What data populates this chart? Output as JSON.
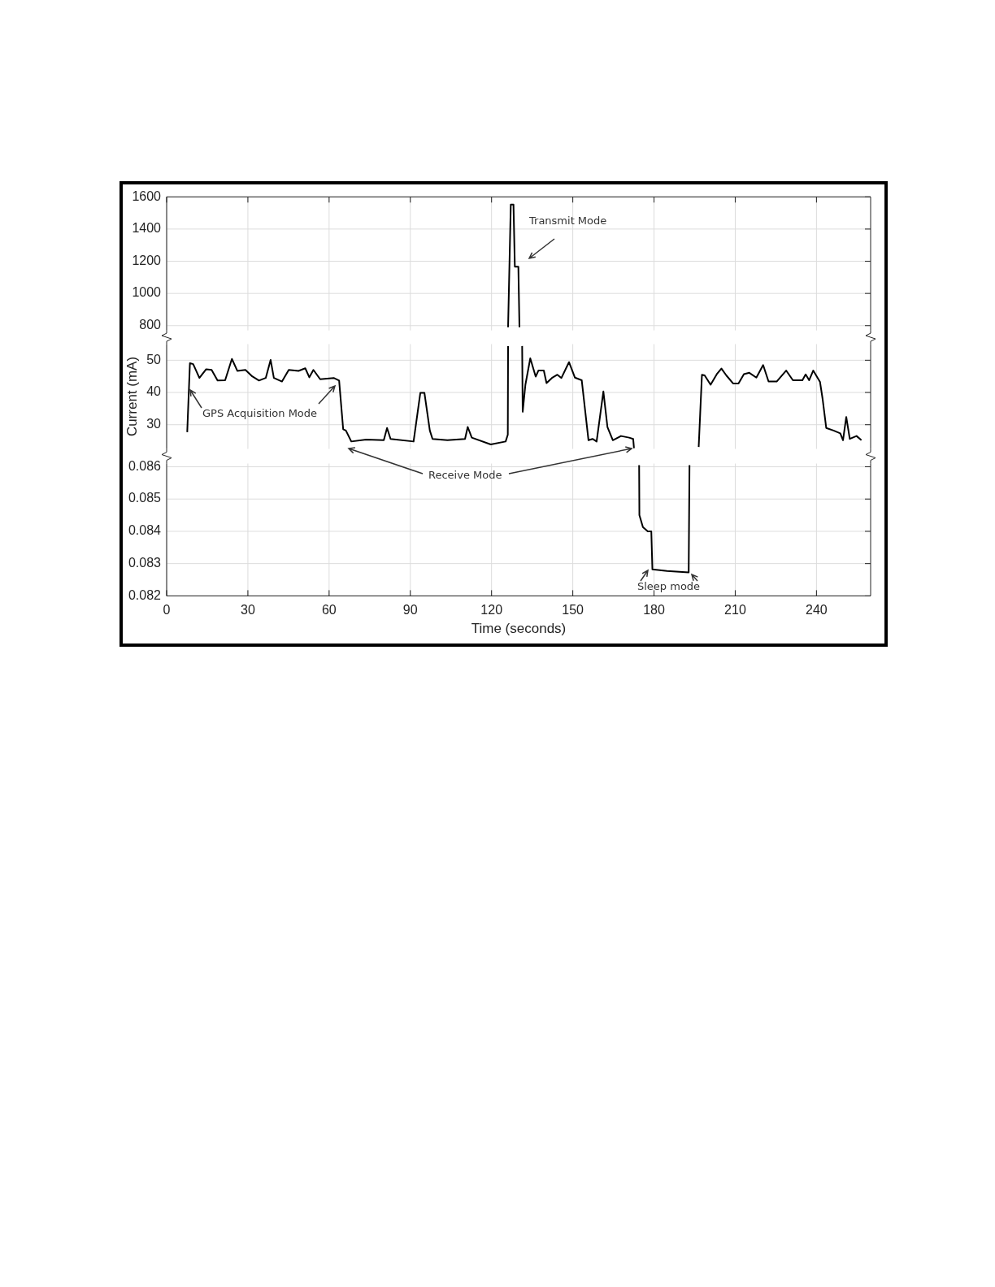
{
  "chart_data": [
    {
      "type": "line",
      "x": [
        126.1,
        127.1,
        128.1,
        128.6,
        129.9,
        130.3
      ],
      "series": [
        {
          "color": "#000000",
          "values": [
            790,
            1552,
            1552,
            1166,
            1166,
            790
          ]
        }
      ],
      "xlim": [
        0,
        260
      ],
      "xticks": [
        0,
        30,
        60,
        90,
        120,
        150,
        180,
        210,
        240
      ],
      "ylim": [
        770,
        1600
      ],
      "yticks": [
        800,
        1000,
        1200,
        1400,
        1600
      ],
      "grid": true,
      "tick_labels": "y",
      "annotations": [
        "Transmit Mode"
      ]
    },
    {
      "type": "line",
      "ylabel": "Current (mA)",
      "x": [
        7.6,
        8.6,
        9.8,
        12.1,
        14.6,
        16.6,
        18.8,
        21.6,
        24.1,
        26.1,
        29.1,
        31.6,
        34.1,
        36.6,
        38.4,
        39.6,
        42.6,
        45.1,
        48.7,
        51.2,
        52.7,
        54.2,
        56.7,
        61.7,
        63.7,
        65.2,
        66.2,
        68.2,
        73.7,
        80.2,
        81.4,
        82.7,
        91.2,
        93.7,
        95.2,
        97.2,
        98.2,
        103.7,
        110.2,
        111.2,
        112.7,
        119.7,
        125.2,
        126.0,
        126.1,
        126.2,
        131.3,
        131.5,
        132.5,
        134.3,
        136.3,
        137.3,
        139.3,
        140.3,
        142.3,
        144.3,
        145.8,
        148.6,
        150.8,
        153.3,
        155.8,
        157.3,
        158.8,
        161.3,
        162.8,
        164.8,
        167.8,
        170.8,
        172.3,
        172.6,
        180,
        196.5,
        197.7,
        198.7,
        200.9,
        203.2,
        204.9,
        206.7,
        209.2,
        211.2,
        213.2,
        215.2,
        217.8,
        220.3,
        222.3,
        225.3,
        228.8,
        231.3,
        234.8,
        236.0,
        237.3,
        238.8,
        241.3,
        242.3,
        243.6,
        246.3,
        248.8,
        249.8,
        251.0,
        252.3,
        254.8,
        256.6
      ],
      "series": [
        {
          "color": "#000000",
          "values": [
            27.7,
            49.1,
            48.8,
            44.5,
            47.2,
            47.0,
            43.7,
            43.8,
            50.4,
            46.7,
            47.0,
            45.0,
            43.7,
            44.5,
            50.1,
            44.5,
            43.4,
            47.0,
            46.7,
            47.5,
            44.7,
            47.0,
            44.1,
            44.5,
            43.7,
            28.6,
            28.2,
            24.8,
            25.4,
            25.2,
            29.0,
            25.6,
            24.8,
            39.9,
            39.9,
            28.2,
            25.6,
            25.2,
            25.6,
            29.3,
            26.0,
            23.9,
            24.8,
            26.9,
            54.4,
            null,
            54.4,
            34.0,
            42.4,
            50.6,
            44.9,
            46.8,
            46.8,
            42.9,
            44.5,
            45.5,
            44.5,
            49.4,
            44.6,
            43.8,
            25.2,
            25.6,
            24.8,
            40.3,
            29.3,
            25.2,
            26.5,
            26.0,
            25.6,
            22.7,
            null,
            23.1,
            45.5,
            45.3,
            42.4,
            45.7,
            47.4,
            45.3,
            42.8,
            42.8,
            45.7,
            46.1,
            44.6,
            48.5,
            43.4,
            43.4,
            46.8,
            43.8,
            43.8,
            45.6,
            43.8,
            46.8,
            43.3,
            37.8,
            29.0,
            28.2,
            27.3,
            25.2,
            32.4,
            25.6,
            26.5,
            25.2
          ]
        }
      ],
      "xlim": [
        0,
        260
      ],
      "xticks": [
        0,
        30,
        60,
        90,
        120,
        150,
        180,
        210,
        240
      ],
      "ylim": [
        22.5,
        55
      ],
      "yticks": [
        30,
        40,
        50
      ],
      "grid": true,
      "tick_labels": "y",
      "annotations": [
        "GPS Acquisition Mode"
      ]
    },
    {
      "type": "line",
      "xlabel": "Time (seconds)",
      "x": [
        174.5,
        174.6,
        175.9,
        177.7,
        179.0,
        179.4,
        184.8,
        192.8,
        193.1
      ],
      "series": [
        {
          "color": "#000000",
          "values": [
            0.08605,
            0.0845,
            0.08413,
            0.084,
            0.084,
            0.08282,
            0.08277,
            0.08273,
            0.08605
          ]
        }
      ],
      "xlim": [
        0,
        260
      ],
      "xticks": [
        0,
        30,
        60,
        90,
        120,
        150,
        180,
        210,
        240
      ],
      "ylim": [
        0.082,
        0.0861
      ],
      "yticks": [
        0.082,
        0.083,
        0.084,
        0.085,
        0.086
      ],
      "grid": true,
      "annotations": [
        "Receive Mode",
        "Sleep mode"
      ]
    }
  ]
}
